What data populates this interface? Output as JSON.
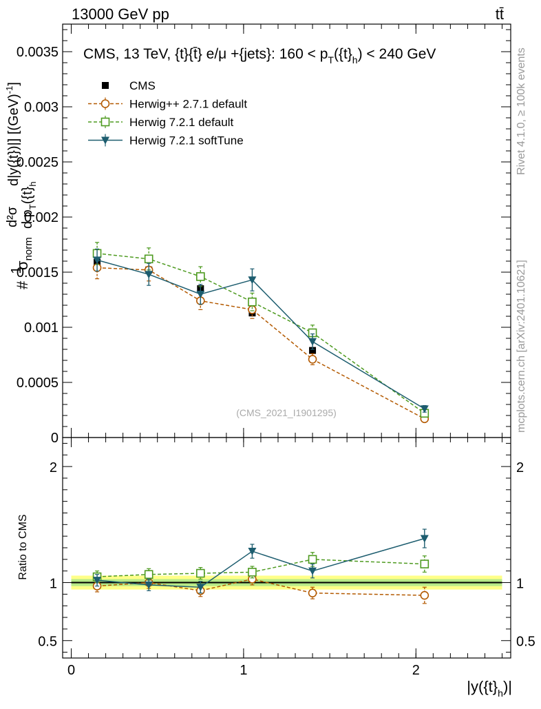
{
  "header": {
    "energy_label": "13000 GeV pp",
    "process_label": "tt̄"
  },
  "side": {
    "rivet_label": "Rivet 4.1.0, ≥ 100k events",
    "mcplots_label": "mcplots.cern.ch [arXiv:2401.10621]"
  },
  "chart_data": [
    {
      "type": "scatter",
      "panel": "main",
      "title": "CMS, 13 TeV, {t}{t̄} e/μ +{jets}: 160 <  p_T({t}_h) < 240 GeV",
      "title_parts": {
        "main": "CMS, 13 TeV, {t}{t̄} e/μ +{jets}: 160 <  p",
        "sub1": "T",
        "mid": "({t}",
        "sub2": "h",
        "end": ") < 240 GeV"
      },
      "ylabel": "# 1/σ_norm # d²σ / d p_T({t}_h) d|y({t}_h)| [(GeV)⁻¹]",
      "ylabel_parts": {
        "hash": "#",
        "one": "1",
        "sigma_norm": "σ",
        "norm_sub": "norm",
        "d2sigma": "d²σ",
        "dpt": "d p",
        "pt_sub": "T",
        "pt_arg": "({t}",
        "h_sub": "h",
        "dy": "d|y({t}",
        "tail": ")|] [(GeV)",
        "exp": "-1",
        "close": "]"
      },
      "watermark": "(CMS_2021_I1901295)",
      "xlim": [
        -0.05,
        2.55
      ],
      "ylim": [
        0,
        0.00375
      ],
      "yticks": [
        0,
        0.0005,
        0.001,
        0.0015,
        0.002,
        0.0025,
        0.003,
        0.0035
      ],
      "ytick_labels": [
        "0",
        "0.0005",
        "0.001",
        "0.0015",
        "0.002",
        "0.0025",
        "0.003",
        "0.0035"
      ],
      "x": [
        0.15,
        0.45,
        0.75,
        1.05,
        1.4,
        2.05
      ],
      "series": [
        {
          "name": "CMS",
          "style": "data",
          "color": "#000000",
          "values": [
            0.00159,
            0.00152,
            0.00135,
            0.00113,
            0.00079,
            0.00019
          ],
          "errors": [
            5e-05,
            4e-05,
            4e-05,
            3e-05,
            3e-05,
            1e-05
          ]
        },
        {
          "name": "Herwig++ 2.7.1 default",
          "style": "circle",
          "color": "#b35900",
          "values": [
            0.00154,
            0.00152,
            0.00124,
            0.00116,
            0.00071,
            0.00017
          ],
          "errors": [
            0.0001,
            0.0001,
            8e-05,
            8e-05,
            5e-05,
            2e-05
          ]
        },
        {
          "name": "Herwig 7.2.1 default",
          "style": "square",
          "color": "#4d9a1f",
          "values": [
            0.00167,
            0.00162,
            0.00146,
            0.00123,
            0.00095,
            0.00022
          ],
          "errors": [
            0.0001,
            0.0001,
            9e-05,
            8e-05,
            7e-05,
            3e-05
          ]
        },
        {
          "name": "Herwig 7.2.1 softTune",
          "style": "triangle",
          "color": "#1d5d6f",
          "values": [
            0.00161,
            0.00148,
            0.0013,
            0.00143,
            0.00087,
            0.00026
          ],
          "errors": [
            0.0001,
            0.0001,
            9e-05,
            0.0001,
            7e-05,
            3e-05
          ]
        }
      ]
    },
    {
      "type": "scatter",
      "panel": "ratio",
      "ylabel": "Ratio to CMS",
      "xlabel": "|y({t}_h)|",
      "xlabel_parts": {
        "main": "|y({t}",
        "sub": "h",
        "end": ")|"
      },
      "xlim": [
        -0.05,
        2.55
      ],
      "ylim": [
        0.35,
        2.25
      ],
      "xticks": [
        0,
        1,
        2
      ],
      "xtick_labels": [
        "0",
        "1",
        "2"
      ],
      "yticks": [
        0.5,
        1,
        2
      ],
      "ytick_labels": [
        "0.5",
        "1",
        "2"
      ],
      "x": [
        0.15,
        0.45,
        0.75,
        1.05,
        1.4,
        2.05
      ],
      "band_inner": 0.03,
      "band_outer": 0.06,
      "series": [
        {
          "name": "Herwig++ 2.7.1 default",
          "style": "circle",
          "color": "#b35900",
          "values": [
            0.97,
            1.0,
            0.93,
            1.03,
            0.91,
            0.89
          ],
          "errors": [
            0.05,
            0.05,
            0.05,
            0.05,
            0.05,
            0.07
          ]
        },
        {
          "name": "Herwig 7.2.1 default",
          "style": "square",
          "color": "#4d9a1f",
          "values": [
            1.05,
            1.07,
            1.08,
            1.09,
            1.2,
            1.16
          ],
          "errors": [
            0.05,
            0.05,
            0.05,
            0.05,
            0.06,
            0.07
          ]
        },
        {
          "name": "Herwig 7.2.1 softTune",
          "style": "triangle",
          "color": "#1d5d6f",
          "values": [
            1.02,
            0.98,
            0.96,
            1.27,
            1.1,
            1.38
          ],
          "errors": [
            0.05,
            0.05,
            0.05,
            0.06,
            0.06,
            0.08
          ]
        }
      ]
    }
  ]
}
